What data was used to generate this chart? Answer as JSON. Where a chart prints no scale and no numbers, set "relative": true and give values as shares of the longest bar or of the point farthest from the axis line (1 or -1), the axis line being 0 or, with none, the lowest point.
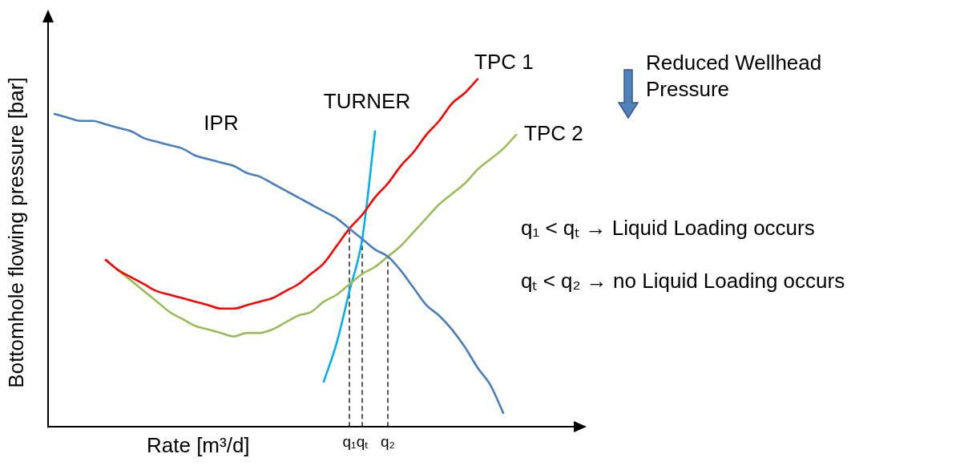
{
  "chart_data": {
    "type": "line",
    "relative": true,
    "xlabel": "Rate [m³/d]",
    "ylabel": "Bottomhole flowing pressure [bar]",
    "grid": false,
    "legend": false,
    "marker": "none",
    "categories": [
      null,
      null,
      null,
      null,
      null,
      null,
      null,
      null,
      null,
      null,
      null,
      null,
      null,
      null,
      null,
      null,
      null,
      null,
      null,
      null,
      null,
      null,
      null,
      "q₁",
      "qₜ",
      null,
      "q₂",
      null,
      null,
      null,
      null,
      null,
      null,
      null,
      null,
      null,
      null,
      null,
      null,
      null,
      null,
      null
    ],
    "series": [
      {
        "name": "IPR",
        "color": "#4a7ebb",
        "values": [
          0.9,
          0.89,
          0.88,
          0.88,
          0.87,
          0.86,
          0.85,
          0.83,
          0.82,
          0.81,
          0.8,
          0.78,
          0.77,
          0.76,
          0.75,
          0.73,
          0.72,
          0.7,
          0.68,
          0.66,
          0.64,
          0.62,
          0.6,
          0.57,
          0.54,
          0.51,
          0.49,
          0.45,
          0.4,
          0.35,
          0.32,
          0.28,
          0.23,
          0.17,
          0.12,
          0.04,
          null,
          null,
          null,
          null,
          null,
          null
        ]
      },
      {
        "name": "TPC 1",
        "color": "#ff0000",
        "values": [
          null,
          null,
          null,
          null,
          0.48,
          0.45,
          0.43,
          0.41,
          0.39,
          0.38,
          0.37,
          0.36,
          0.35,
          0.34,
          0.34,
          0.35,
          0.36,
          0.37,
          0.39,
          0.41,
          0.44,
          0.47,
          0.52,
          0.57,
          0.61,
          0.66,
          0.7,
          0.75,
          0.79,
          0.84,
          0.88,
          0.93,
          0.96,
          1,
          null,
          null,
          null,
          null,
          null,
          null,
          null,
          null
        ]
      },
      {
        "name": "TPC 2",
        "color": "#9bbb59",
        "values": [
          null,
          null,
          null,
          null,
          0.48,
          0.45,
          0.42,
          0.39,
          0.36,
          0.33,
          0.31,
          0.29,
          0.28,
          0.27,
          0.26,
          0.27,
          0.27,
          0.28,
          0.3,
          0.32,
          0.33,
          0.36,
          0.38,
          0.41,
          0.44,
          0.46,
          0.49,
          0.52,
          0.56,
          0.6,
          0.64,
          0.67,
          0.7,
          0.74,
          0.77,
          0.8,
          0.84,
          null,
          null,
          null,
          null,
          null
        ]
      },
      {
        "name": "TURNER",
        "color": "#00b0f0",
        "values": [
          null,
          null,
          null,
          null,
          null,
          null,
          null,
          null,
          null,
          null,
          null,
          null,
          null,
          null,
          null,
          null,
          null,
          null,
          null,
          null,
          null,
          0.13,
          0.24,
          0.39,
          0.54,
          0.85,
          null,
          null,
          null,
          null,
          null,
          null,
          null,
          null,
          null,
          null,
          null,
          null,
          null,
          null,
          null,
          null
        ]
      }
    ],
    "ref_lines": [
      {
        "axis": "x",
        "value": "q₁",
        "color": "#000000",
        "line_style": "dashed"
      },
      {
        "axis": "x",
        "value": "qₜ",
        "color": "#000000",
        "line_style": "dashed"
      },
      {
        "axis": "x",
        "value": "q₂",
        "color": "#000000",
        "line_style": "dashed"
      }
    ],
    "annotations": [
      "Reduced Wellhead Pressure",
      "q₁ < qₜ → Liquid Loading occurs",
      "qₜ < q₂ → no Liquid Loading occurs"
    ]
  }
}
